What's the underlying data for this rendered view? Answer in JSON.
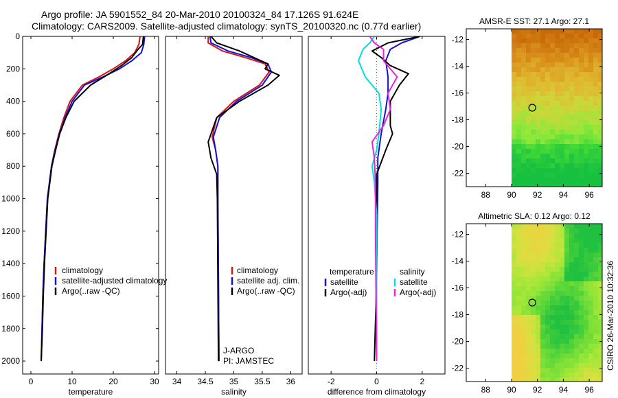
{
  "figure": {
    "title_line1": "Argo profile: JA 5901552_84 20-Mar-2010 20100324_84 17.126S 91.624E",
    "title_line2": "Climatology: CARS2009. Satellite-adjusted climatology: synTS_20100320.nc (0.77d earlier)",
    "side_label": "CSIRO 26-Mar-2010 10:32:36"
  },
  "colors": {
    "climatology": "#dd1111",
    "satellite": "#1111dd",
    "argo": "#000000",
    "salinity_satellite": "#00e0e0",
    "salinity_argo": "#ee22dd"
  },
  "chart_data": [
    {
      "id": "temperature",
      "type": "line",
      "xlabel": "temperature",
      "ylabel": "",
      "xlim": [
        -2,
        31
      ],
      "ylim": [
        2080,
        0
      ],
      "xticks": [
        0,
        10,
        20,
        30
      ],
      "yticks": [
        0,
        200,
        400,
        600,
        800,
        1000,
        1200,
        1400,
        1600,
        1800,
        2000
      ],
      "grid": false,
      "legend": {
        "placement": "lower-center",
        "entries": [
          "climatology",
          "satellite-adjusted climatology",
          "Argo(..raw -QC)"
        ]
      },
      "series": [
        {
          "name": "climatology",
          "color_key": "climatology",
          "x": [
            26.5,
            26.2,
            25.2,
            23.0,
            20.0,
            16.5,
            12.5,
            9.5,
            8.0,
            6.8,
            5.8,
            5.0,
            4.5,
            4.0,
            3.6,
            3.2,
            2.9,
            2.7,
            2.5
          ],
          "y": [
            0,
            50,
            100,
            150,
            200,
            250,
            300,
            400,
            500,
            600,
            700,
            800,
            900,
            1000,
            1200,
            1400,
            1600,
            1800,
            2000
          ]
        },
        {
          "name": "satellite-adjusted climatology",
          "color_key": "satellite",
          "x": [
            27.6,
            27.4,
            26.8,
            24.5,
            21.5,
            17.5,
            13.0,
            10.0,
            8.3,
            6.9,
            5.9,
            5.0,
            4.5,
            4.0,
            3.6,
            3.2,
            2.9,
            2.7,
            2.5
          ],
          "y": [
            0,
            50,
            100,
            150,
            200,
            250,
            300,
            400,
            500,
            600,
            700,
            800,
            900,
            1000,
            1200,
            1400,
            1600,
            1800,
            2000
          ]
        },
        {
          "name": "Argo(..raw -QC)",
          "color_key": "argo",
          "x": [
            27.3,
            27.1,
            26.0,
            24.5,
            22.0,
            19.0,
            14.5,
            10.5,
            8.5,
            7.0,
            6.0,
            5.1,
            4.6,
            4.1,
            3.7,
            3.3,
            3.0,
            2.8,
            2.5
          ],
          "y": [
            0,
            50,
            80,
            130,
            180,
            230,
            300,
            400,
            500,
            600,
            700,
            800,
            900,
            1000,
            1200,
            1400,
            1600,
            1800,
            2000
          ]
        }
      ]
    },
    {
      "id": "salinity",
      "type": "line",
      "xlabel": "salinity",
      "ylabel": "",
      "xlim": [
        33.8,
        36.2
      ],
      "ylim": [
        2080,
        0
      ],
      "xticks": [
        34,
        34.5,
        35,
        35.5,
        36
      ],
      "yticks": [],
      "grid": false,
      "legend": {
        "placement": "lower-right",
        "entries": [
          "climatology",
          "satellite adj. clim.",
          "Argo(..raw -QC)"
        ]
      },
      "annotations": [
        "J-ARGO",
        "PI: JAMSTEC"
      ],
      "series": [
        {
          "name": "climatology",
          "color_key": "climatology",
          "x": [
            34.55,
            34.55,
            34.8,
            35.2,
            35.55,
            35.62,
            35.45,
            35.0,
            34.7,
            34.62,
            34.68,
            34.72,
            34.72,
            34.73,
            34.74
          ],
          "y": [
            0,
            40,
            90,
            130,
            170,
            220,
            300,
            400,
            500,
            620,
            700,
            800,
            1000,
            1500,
            2000
          ]
        },
        {
          "name": "satellite adj. clim.",
          "color_key": "satellite",
          "x": [
            34.58,
            34.6,
            34.9,
            35.3,
            35.6,
            35.66,
            35.5,
            35.05,
            34.75,
            34.64,
            34.68,
            34.72,
            34.72,
            34.73,
            34.74
          ],
          "y": [
            0,
            40,
            90,
            130,
            170,
            220,
            300,
            400,
            500,
            620,
            700,
            800,
            1000,
            1500,
            2000
          ]
        },
        {
          "name": "Argo(..raw -QC)",
          "color_key": "argo",
          "x": [
            34.6,
            34.7,
            35.1,
            35.6,
            35.55,
            35.8,
            35.6,
            35.1,
            34.7,
            34.55,
            34.6,
            34.7,
            34.71,
            34.72,
            34.73
          ],
          "y": [
            0,
            40,
            90,
            170,
            200,
            240,
            300,
            400,
            500,
            650,
            750,
            850,
            1000,
            1500,
            2000
          ]
        }
      ]
    },
    {
      "id": "difference",
      "type": "line",
      "xlabel": "difference from climatology",
      "ylabel": "",
      "xlim": [
        -3,
        3
      ],
      "ylim": [
        2080,
        0
      ],
      "xticks": [
        -2,
        0,
        2
      ],
      "yticks": [],
      "grid": false,
      "legend": {
        "placement": "lower-center",
        "temperature_title": "temperature",
        "salinity_title": "salinity",
        "temperature_entries": [
          "satellite",
          "Argo(-adj)"
        ],
        "salinity_entries": [
          "satellite",
          "Argo(-adj)"
        ]
      },
      "series": [
        {
          "name": "temperature satellite",
          "color_key": "satellite",
          "x": [
            1.9,
            1.1,
            0.6,
            0.4,
            0.5,
            0.5,
            0.4,
            0.2,
            0.05,
            0.05,
            0.02,
            0.0,
            0.0,
            0.0
          ],
          "y": [
            0,
            40,
            80,
            150,
            250,
            350,
            450,
            600,
            750,
            900,
            1200,
            1500,
            1800,
            2000
          ]
        },
        {
          "name": "temperature Argo(-adj)",
          "color_key": "argo",
          "x": [
            1.9,
            0.5,
            -0.2,
            0.2,
            0.6,
            1.4,
            1.0,
            0.6,
            0.6,
            0.7,
            0.4,
            0.0,
            0.0,
            0.0,
            -0.1
          ],
          "y": [
            0,
            40,
            90,
            130,
            180,
            230,
            300,
            400,
            550,
            600,
            700,
            850,
            1000,
            1500,
            2000
          ]
        },
        {
          "name": "salinity satellite",
          "color_key": "salinity_satellite",
          "x": [
            -0.1,
            -0.3,
            -0.6,
            -0.8,
            -0.5,
            0.1,
            0.2,
            0.1,
            0.0,
            -0.2,
            -0.1,
            0.0,
            0.0,
            0.0
          ],
          "y": [
            0,
            40,
            80,
            150,
            250,
            350,
            450,
            600,
            700,
            800,
            900,
            1100,
            1500,
            2000
          ]
        },
        {
          "name": "salinity Argo(-adj)",
          "color_key": "salinity_argo",
          "x": [
            -0.3,
            -0.1,
            0.3,
            0.3,
            0.9,
            0.5,
            0.6,
            0.3,
            -0.2,
            -0.1,
            -0.05,
            -0.05,
            0.0
          ],
          "y": [
            0,
            40,
            80,
            150,
            250,
            350,
            450,
            550,
            650,
            750,
            900,
            1200,
            2000
          ]
        }
      ]
    },
    {
      "id": "sst_map",
      "type": "heatmap",
      "title": "AMSR-E SST: 27.1 Argo: 27.1",
      "xlim": [
        86.5,
        97.0
      ],
      "ylim": [
        -23,
        -11.2
      ],
      "xticks": [
        88,
        90,
        92,
        94,
        96
      ],
      "yticks": [
        -12,
        -14,
        -16,
        -18,
        -20,
        -22
      ],
      "data_extent": [
        90,
        97
      ],
      "profile_location": [
        91.6,
        -17.1
      ],
      "colormap": [
        "#c86a0a",
        "#d9901a",
        "#e0b830",
        "#cdd73a",
        "#8fe83a",
        "#3fd838",
        "#18c040"
      ],
      "value_range": [
        -23,
        -11.2
      ]
    },
    {
      "id": "sla_map",
      "type": "heatmap",
      "title": "Altimetric SLA: 0.12 Argo: 0.12",
      "xlim": [
        86.5,
        97.0
      ],
      "ylim": [
        -23,
        -11.2
      ],
      "xticks": [
        88,
        90,
        92,
        94,
        96
      ],
      "yticks": [
        -12,
        -14,
        -16,
        -18,
        -20,
        -22
      ],
      "data_extent": [
        90,
        97
      ],
      "profile_location": [
        91.6,
        -17.1
      ],
      "colormap": [
        "#20c040",
        "#60d838",
        "#a0e838",
        "#d8e040",
        "#f0d040"
      ]
    }
  ]
}
